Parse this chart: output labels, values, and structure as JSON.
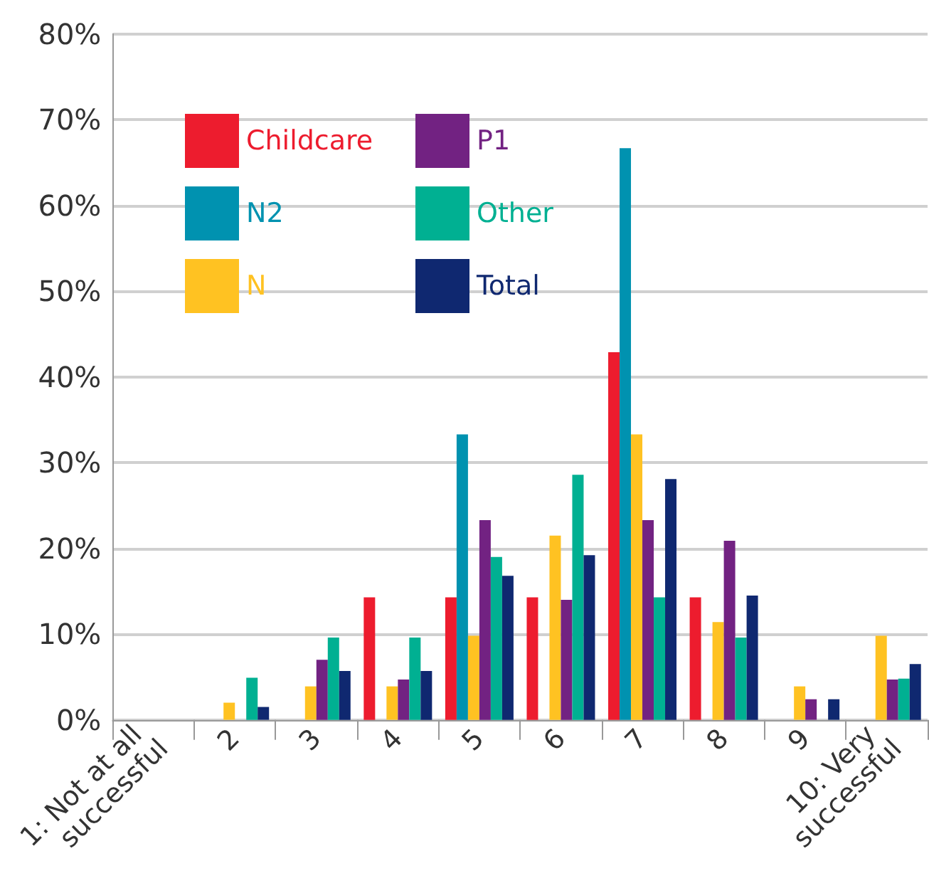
{
  "chart_data": {
    "type": "bar",
    "categories": [
      "1: Not at all successful",
      "2",
      "3",
      "4",
      "5",
      "6",
      "7",
      "8",
      "9",
      "10: Very successful"
    ],
    "series": [
      {
        "name": "Childcare",
        "color": "#ed1c2e",
        "values": [
          0,
          0,
          0,
          14.3,
          14.3,
          14.3,
          42.9,
          14.3,
          0,
          0
        ]
      },
      {
        "name": "N2",
        "color": "#0092b0",
        "values": [
          0,
          0,
          0,
          0,
          33.3,
          0,
          66.7,
          0,
          0,
          0
        ]
      },
      {
        "name": "N",
        "color": "#ffc222",
        "values": [
          0,
          2.0,
          3.9,
          3.9,
          9.8,
          21.5,
          33.3,
          11.4,
          3.9,
          9.8
        ]
      },
      {
        "name": "P1",
        "color": "#722282",
        "values": [
          0,
          0,
          7.0,
          4.7,
          23.3,
          14.0,
          23.3,
          20.9,
          2.4,
          4.7
        ]
      },
      {
        "name": "Other",
        "color": "#00b092",
        "values": [
          0,
          4.9,
          9.6,
          9.6,
          19.0,
          28.6,
          14.3,
          9.6,
          0,
          4.8
        ]
      },
      {
        "name": "Total",
        "color": "#0f2870",
        "values": [
          0,
          1.5,
          5.7,
          5.7,
          16.8,
          19.2,
          28.1,
          14.5,
          2.4,
          6.5
        ]
      }
    ],
    "ylim": [
      0,
      80
    ],
    "yticks": [
      {
        "value": 0,
        "label": "0%"
      },
      {
        "value": 10,
        "label": "10%"
      },
      {
        "value": 20,
        "label": "20%"
      },
      {
        "value": 30,
        "label": "30%"
      },
      {
        "value": 40,
        "label": "40%"
      },
      {
        "value": 50,
        "label": "50%"
      },
      {
        "value": 60,
        "label": "60%"
      },
      {
        "value": 70,
        "label": "70%"
      },
      {
        "value": 80,
        "label": "80%"
      }
    ],
    "grid": "y",
    "legend": "top left"
  }
}
